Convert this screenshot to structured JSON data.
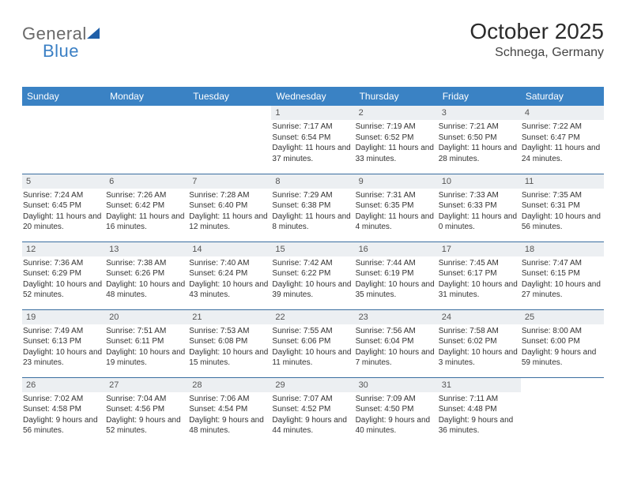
{
  "brand": {
    "part1": "General",
    "part2": "Blue"
  },
  "title": "October 2025",
  "location": "Schnega, Germany",
  "header_bg": "#3a82c4",
  "header_fg": "#ffffff",
  "row_border": "#3a6ea0",
  "daynum_bg": "#eceff2",
  "weekdays": [
    "Sunday",
    "Monday",
    "Tuesday",
    "Wednesday",
    "Thursday",
    "Friday",
    "Saturday"
  ],
  "weeks": [
    [
      null,
      null,
      null,
      {
        "n": "1",
        "sr": "7:17 AM",
        "ss": "6:54 PM",
        "dl": "11 hours and 37 minutes."
      },
      {
        "n": "2",
        "sr": "7:19 AM",
        "ss": "6:52 PM",
        "dl": "11 hours and 33 minutes."
      },
      {
        "n": "3",
        "sr": "7:21 AM",
        "ss": "6:50 PM",
        "dl": "11 hours and 28 minutes."
      },
      {
        "n": "4",
        "sr": "7:22 AM",
        "ss": "6:47 PM",
        "dl": "11 hours and 24 minutes."
      }
    ],
    [
      {
        "n": "5",
        "sr": "7:24 AM",
        "ss": "6:45 PM",
        "dl": "11 hours and 20 minutes."
      },
      {
        "n": "6",
        "sr": "7:26 AM",
        "ss": "6:42 PM",
        "dl": "11 hours and 16 minutes."
      },
      {
        "n": "7",
        "sr": "7:28 AM",
        "ss": "6:40 PM",
        "dl": "11 hours and 12 minutes."
      },
      {
        "n": "8",
        "sr": "7:29 AM",
        "ss": "6:38 PM",
        "dl": "11 hours and 8 minutes."
      },
      {
        "n": "9",
        "sr": "7:31 AM",
        "ss": "6:35 PM",
        "dl": "11 hours and 4 minutes."
      },
      {
        "n": "10",
        "sr": "7:33 AM",
        "ss": "6:33 PM",
        "dl": "11 hours and 0 minutes."
      },
      {
        "n": "11",
        "sr": "7:35 AM",
        "ss": "6:31 PM",
        "dl": "10 hours and 56 minutes."
      }
    ],
    [
      {
        "n": "12",
        "sr": "7:36 AM",
        "ss": "6:29 PM",
        "dl": "10 hours and 52 minutes."
      },
      {
        "n": "13",
        "sr": "7:38 AM",
        "ss": "6:26 PM",
        "dl": "10 hours and 48 minutes."
      },
      {
        "n": "14",
        "sr": "7:40 AM",
        "ss": "6:24 PM",
        "dl": "10 hours and 43 minutes."
      },
      {
        "n": "15",
        "sr": "7:42 AM",
        "ss": "6:22 PM",
        "dl": "10 hours and 39 minutes."
      },
      {
        "n": "16",
        "sr": "7:44 AM",
        "ss": "6:19 PM",
        "dl": "10 hours and 35 minutes."
      },
      {
        "n": "17",
        "sr": "7:45 AM",
        "ss": "6:17 PM",
        "dl": "10 hours and 31 minutes."
      },
      {
        "n": "18",
        "sr": "7:47 AM",
        "ss": "6:15 PM",
        "dl": "10 hours and 27 minutes."
      }
    ],
    [
      {
        "n": "19",
        "sr": "7:49 AM",
        "ss": "6:13 PM",
        "dl": "10 hours and 23 minutes."
      },
      {
        "n": "20",
        "sr": "7:51 AM",
        "ss": "6:11 PM",
        "dl": "10 hours and 19 minutes."
      },
      {
        "n": "21",
        "sr": "7:53 AM",
        "ss": "6:08 PM",
        "dl": "10 hours and 15 minutes."
      },
      {
        "n": "22",
        "sr": "7:55 AM",
        "ss": "6:06 PM",
        "dl": "10 hours and 11 minutes."
      },
      {
        "n": "23",
        "sr": "7:56 AM",
        "ss": "6:04 PM",
        "dl": "10 hours and 7 minutes."
      },
      {
        "n": "24",
        "sr": "7:58 AM",
        "ss": "6:02 PM",
        "dl": "10 hours and 3 minutes."
      },
      {
        "n": "25",
        "sr": "8:00 AM",
        "ss": "6:00 PM",
        "dl": "9 hours and 59 minutes."
      }
    ],
    [
      {
        "n": "26",
        "sr": "7:02 AM",
        "ss": "4:58 PM",
        "dl": "9 hours and 56 minutes."
      },
      {
        "n": "27",
        "sr": "7:04 AM",
        "ss": "4:56 PM",
        "dl": "9 hours and 52 minutes."
      },
      {
        "n": "28",
        "sr": "7:06 AM",
        "ss": "4:54 PM",
        "dl": "9 hours and 48 minutes."
      },
      {
        "n": "29",
        "sr": "7:07 AM",
        "ss": "4:52 PM",
        "dl": "9 hours and 44 minutes."
      },
      {
        "n": "30",
        "sr": "7:09 AM",
        "ss": "4:50 PM",
        "dl": "9 hours and 40 minutes."
      },
      {
        "n": "31",
        "sr": "7:11 AM",
        "ss": "4:48 PM",
        "dl": "9 hours and 36 minutes."
      },
      null
    ]
  ],
  "labels": {
    "sunrise": "Sunrise:",
    "sunset": "Sunset:",
    "daylight": "Daylight:"
  }
}
